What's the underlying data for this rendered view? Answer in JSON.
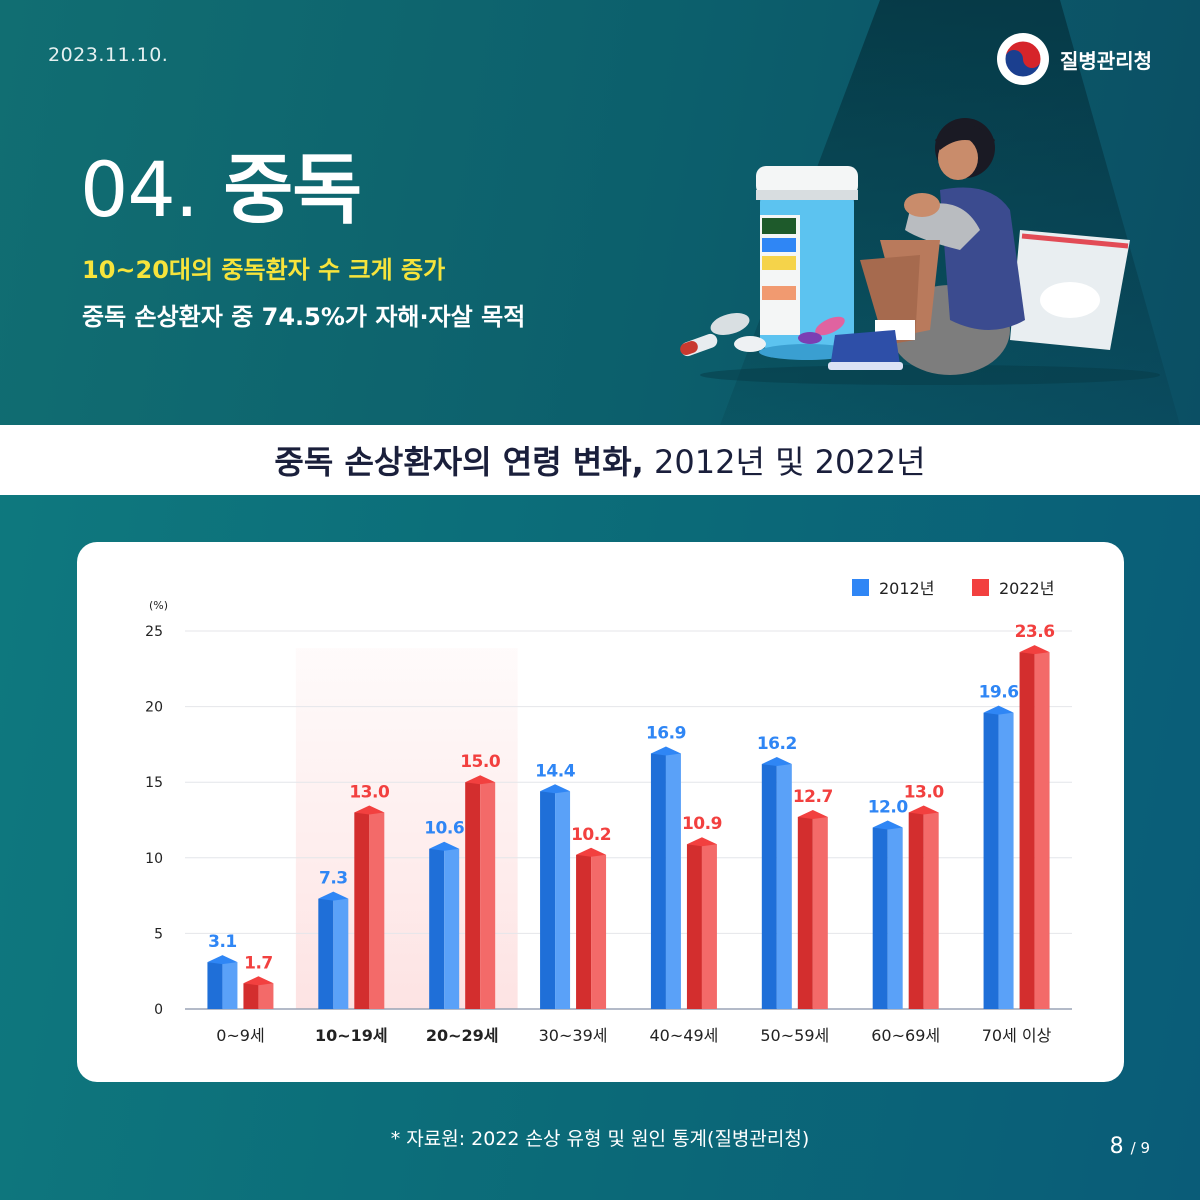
{
  "header": {
    "date": "2023.11.10.",
    "brand": "질병관리청",
    "title_number": "04.",
    "title_text": "중독",
    "subtitle_highlight": "10~20대의 중독환자 수 크게 증가",
    "subtitle": "중독 손상환자 중 74.5%가 자해·자살 목적"
  },
  "band": {
    "title_bold": "중독 손상환자의 연령 변화,",
    "title_rest": " 2012년 및 2022년"
  },
  "colors": {
    "blue": "#2f86f5",
    "red": "#f2403f",
    "highlight": "#fde3e3",
    "subtitle_yellow": "#f7e43c"
  },
  "chart_data": {
    "type": "bar",
    "title": "중독 손상환자의 연령 변화, 2012년 및 2022년",
    "ylabel": "(%)",
    "xlabel": "",
    "ylim": [
      0,
      25
    ],
    "yticks": [
      "0",
      "5",
      "10",
      "15",
      "20",
      "25"
    ],
    "grid": true,
    "legend_position": "top-right",
    "categories": [
      "0~9세",
      "10~19세",
      "20~29세",
      "30~39세",
      "40~49세",
      "50~59세",
      "60~69세",
      "70세 이상"
    ],
    "highlighted_categories": [
      "10~19세",
      "20~29세"
    ],
    "series": [
      {
        "name": "2012년",
        "values": [
          3.1,
          7.3,
          10.6,
          14.4,
          16.9,
          16.2,
          12.0,
          19.6
        ],
        "labels": [
          "3.1",
          "7.3",
          "10.6",
          "14.4",
          "16.9",
          "16.2",
          "12.0",
          "19.6"
        ]
      },
      {
        "name": "2022년",
        "values": [
          1.7,
          13.0,
          15.0,
          10.2,
          10.9,
          12.7,
          13.0,
          23.6
        ],
        "labels": [
          "1.7",
          "13.0",
          "15.0",
          "10.2",
          "10.9",
          "12.7",
          "13.0",
          "23.6"
        ]
      }
    ]
  },
  "footer": {
    "source": "* 자료원: 2022 손상 유형 및 원인 통계(질병관리청)",
    "page_current": "8",
    "page_total": "/ 9"
  }
}
